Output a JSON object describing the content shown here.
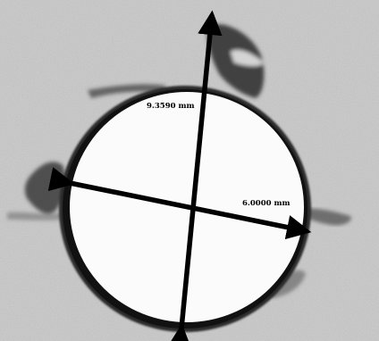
{
  "image": {
    "background_color": "#b9b9b9",
    "hole_fill_color": "#fbfbfb",
    "rim_color": "#111111",
    "arrow_color": "#000000"
  },
  "measurements": [
    {
      "label": "9.3590 mm",
      "orientation": "vertical-diagonal"
    },
    {
      "label": "6.0000 mm",
      "orientation": "horizontal-diagonal"
    }
  ]
}
